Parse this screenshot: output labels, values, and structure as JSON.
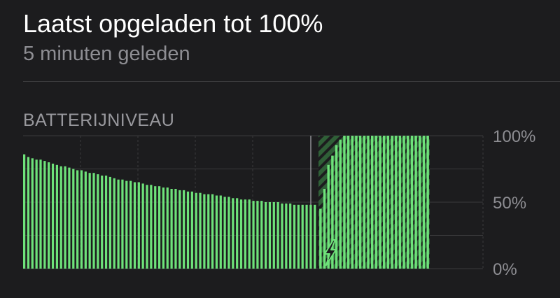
{
  "header": {
    "title": "Laatst opgeladen tot 100%",
    "subtitle": "5 minuten geleden"
  },
  "section": {
    "label": "BATTERIJNIVEAU"
  },
  "colors": {
    "background": "#1c1c1e",
    "bar": "#6ee27a",
    "bar_dark": "#2f5f37",
    "grid": "#3a3a3c",
    "text_secondary": "#8e8e93"
  },
  "chart_data": {
    "type": "bar",
    "ylim": [
      0,
      100
    ],
    "yticks": [
      {
        "value": 100,
        "label": "100%"
      },
      {
        "value": 50,
        "label": "50%"
      },
      {
        "value": 0,
        "label": "0%"
      }
    ],
    "charging_icon": "lightning-bolt-icon",
    "discharging_values": [
      86,
      84,
      83,
      82,
      82,
      81,
      80,
      79,
      78,
      77,
      77,
      76,
      75,
      74,
      74,
      73,
      72,
      72,
      71,
      70,
      70,
      69,
      68,
      67,
      67,
      66,
      66,
      65,
      65,
      64,
      63,
      63,
      62,
      62,
      61,
      61,
      60,
      60,
      59,
      59,
      58,
      58,
      57,
      57,
      56,
      56,
      56,
      55,
      55,
      54,
      54,
      53,
      53,
      52,
      52,
      52,
      51,
      51,
      51,
      50,
      50,
      50,
      50,
      49,
      49,
      49,
      48,
      48,
      48,
      48,
      48,
      48
    ],
    "charging_values": [
      45,
      60,
      78,
      85,
      93,
      97,
      100,
      100,
      100,
      100,
      100,
      100,
      100,
      100,
      100,
      100,
      100,
      100,
      100,
      100,
      100,
      100,
      100,
      100,
      100,
      100,
      100,
      100
    ]
  }
}
